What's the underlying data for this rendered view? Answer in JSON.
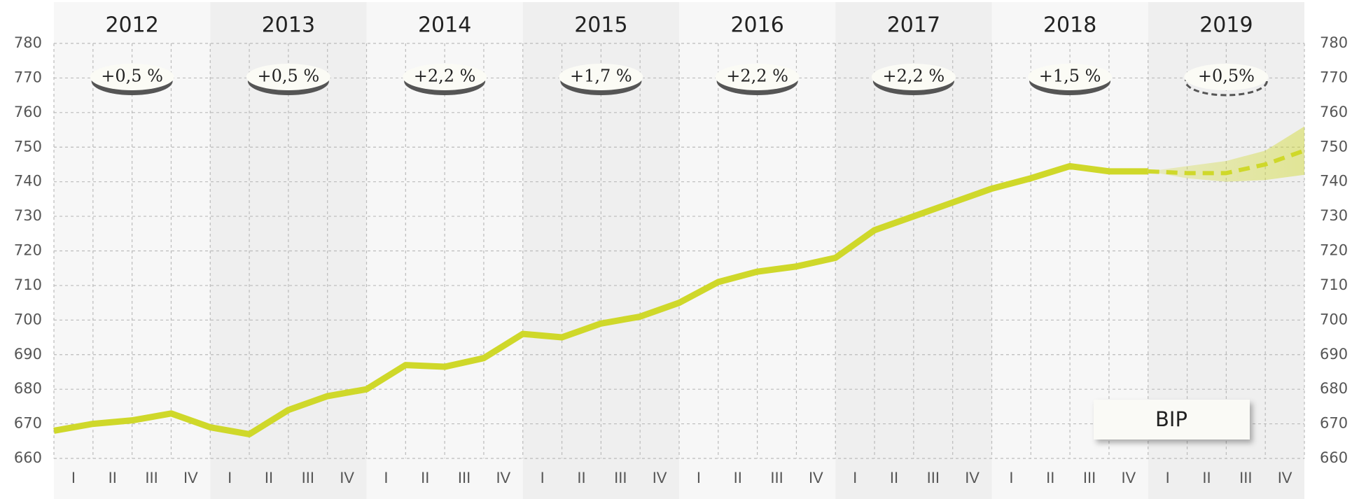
{
  "chart_data": {
    "type": "line",
    "years": [
      "2012",
      "2013",
      "2014",
      "2015",
      "2016",
      "2017",
      "2018",
      "2019"
    ],
    "growth_labels": [
      "+0,5 %",
      "+0,5 %",
      "+2,2 %",
      "+1,7 %",
      "+2,2 %",
      "+2,2 %",
      "+1,5 %",
      "+0,5%"
    ],
    "categories": [
      "I",
      "II",
      "III",
      "IV",
      "I",
      "II",
      "III",
      "IV",
      "I",
      "II",
      "III",
      "IV",
      "I",
      "II",
      "III",
      "IV",
      "I",
      "II",
      "III",
      "IV",
      "I",
      "II",
      "III",
      "IV",
      "I",
      "II",
      "III",
      "IV",
      "I",
      "II",
      "III",
      "IV",
      null
    ],
    "series": [
      {
        "name": "BIP",
        "color": "#cfd82a",
        "values": [
          668,
          670,
          671,
          673,
          669,
          667,
          674,
          678,
          680,
          687,
          686.5,
          689,
          696,
          695,
          699,
          701,
          705,
          711,
          714,
          715.5,
          718,
          726,
          730,
          734,
          738,
          741,
          744.5,
          743,
          743,
          null,
          null,
          null,
          null
        ]
      },
      {
        "color": "#cfd82a",
        "dashed": true,
        "values": [
          null,
          null,
          null,
          null,
          null,
          null,
          null,
          null,
          null,
          null,
          null,
          null,
          null,
          null,
          null,
          null,
          null,
          null,
          null,
          null,
          null,
          null,
          null,
          null,
          null,
          null,
          null,
          null,
          743,
          742.5,
          742.5,
          745,
          749
        ]
      }
    ],
    "forecast_range": {
      "low": [
        null,
        null,
        null,
        null,
        null,
        null,
        null,
        null,
        null,
        null,
        null,
        null,
        null,
        null,
        null,
        null,
        null,
        null,
        null,
        null,
        null,
        null,
        null,
        null,
        null,
        null,
        null,
        null,
        743,
        741,
        740,
        740.5,
        742
      ],
      "high": [
        null,
        null,
        null,
        null,
        null,
        null,
        null,
        null,
        null,
        null,
        null,
        null,
        null,
        null,
        null,
        null,
        null,
        null,
        null,
        null,
        null,
        null,
        null,
        null,
        null,
        null,
        null,
        null,
        743,
        744.5,
        746,
        749,
        756
      ]
    },
    "ylim": [
      660,
      780
    ],
    "yticks": [
      660,
      670,
      680,
      690,
      700,
      710,
      720,
      730,
      740,
      750,
      760,
      770,
      780
    ],
    "grid": true
  }
}
